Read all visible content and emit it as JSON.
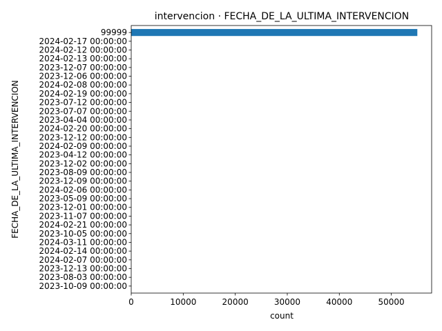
{
  "chart_data": {
    "type": "bar",
    "orientation": "horizontal",
    "title": "intervencion · FECHA_DE_LA_ULTIMA_INTERVENCION",
    "xlabel": "count",
    "ylabel": "FECHA_DE_LA_ULTIMA_INTERVENCION",
    "xlim": [
      0,
      57750
    ],
    "xticks": [
      0,
      10000,
      20000,
      30000,
      40000,
      50000
    ],
    "grid": false,
    "legend": "none",
    "bar_color": "#1f77b4",
    "categories": [
      "99999",
      "2024-02-17 00:00:00",
      "2024-02-12 00:00:00",
      "2024-02-13 00:00:00",
      "2023-12-07 00:00:00",
      "2023-12-06 00:00:00",
      "2024-02-08 00:00:00",
      "2024-02-19 00:00:00",
      "2023-07-12 00:00:00",
      "2023-07-07 00:00:00",
      "2023-04-04 00:00:00",
      "2024-02-20 00:00:00",
      "2023-12-12 00:00:00",
      "2024-02-09 00:00:00",
      "2023-04-12 00:00:00",
      "2023-12-02 00:00:00",
      "2023-08-09 00:00:00",
      "2023-12-09 00:00:00",
      "2024-02-06 00:00:00",
      "2023-05-09 00:00:00",
      "2023-12-01 00:00:00",
      "2023-11-07 00:00:00",
      "2024-02-21 00:00:00",
      "2023-10-05 00:00:00",
      "2024-03-11 00:00:00",
      "2024-02-14 00:00:00",
      "2024-02-07 00:00:00",
      "2023-12-13 00:00:00",
      "2023-08-03 00:00:00",
      "2023-10-09 00:00:00"
    ],
    "values": [
      55000,
      3,
      2,
      2,
      2,
      2,
      2,
      2,
      2,
      2,
      1,
      1,
      1,
      1,
      1,
      1,
      1,
      1,
      1,
      1,
      1,
      1,
      1,
      1,
      1,
      1,
      1,
      1,
      1,
      1
    ]
  }
}
